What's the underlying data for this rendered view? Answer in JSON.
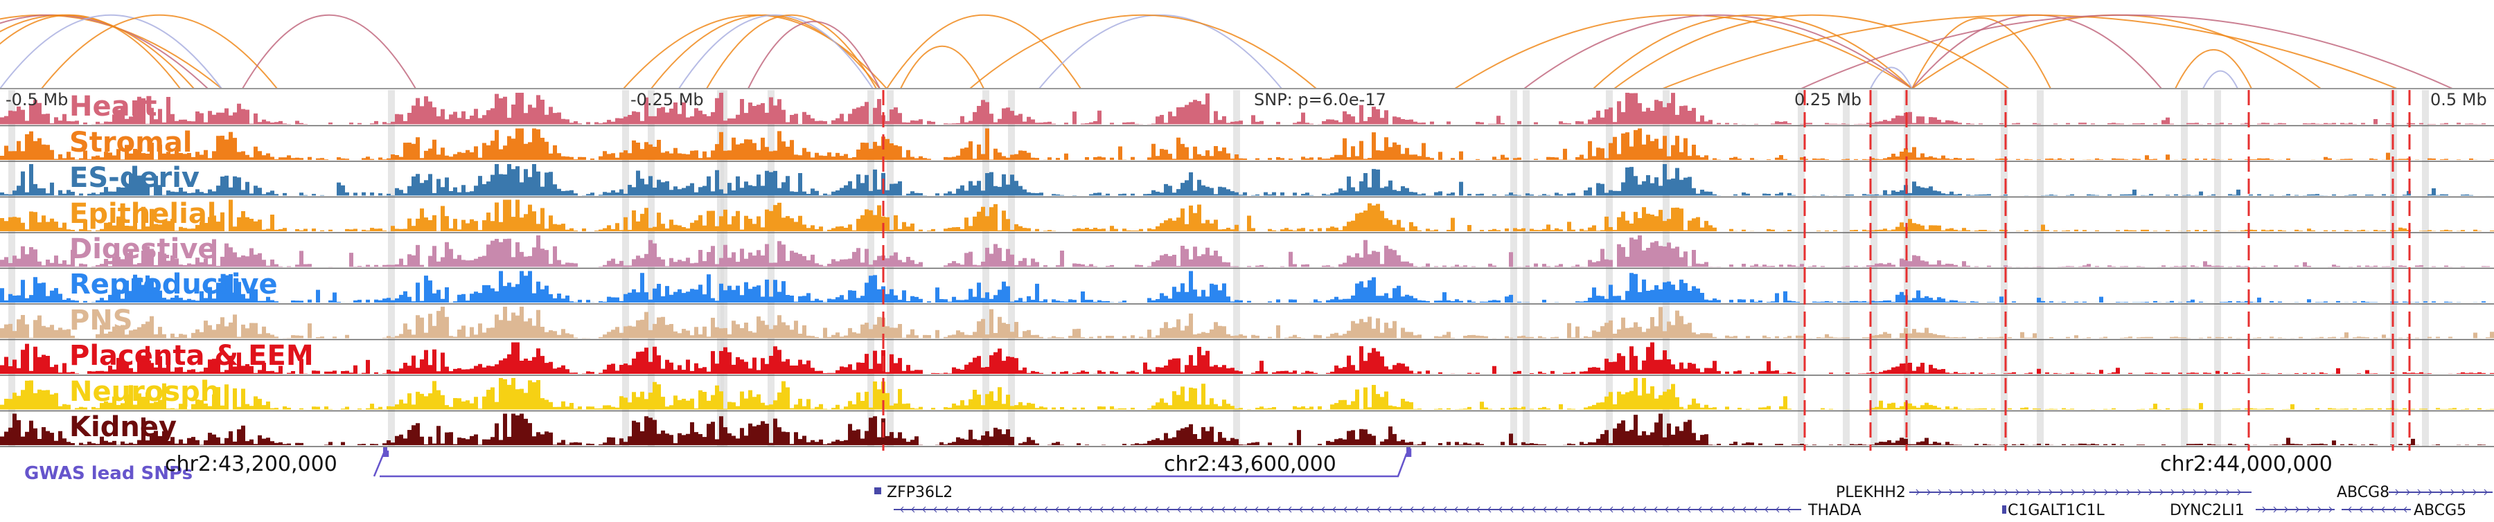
{
  "ruler": {
    "labels": [
      "-0.5 Mb",
      "-0.25 Mb",
      "SNP: p=6.0e-17",
      "0.25 Mb",
      "0.5 Mb"
    ]
  },
  "tracks": [
    {
      "label": "Heart",
      "color": "#d4667a"
    },
    {
      "label": "Stromal",
      "color": "#f07f1a"
    },
    {
      "label": "ES-deriv",
      "color": "#3a78ad"
    },
    {
      "label": "Epithelial",
      "color": "#f39a1d"
    },
    {
      "label": "Digestive",
      "color": "#c889ad"
    },
    {
      "label": "Reproductive",
      "color": "#2b86f0"
    },
    {
      "label": "PNS",
      "color": "#ddb894"
    },
    {
      "label": "Placenta & EEM",
      "color": "#e0121b"
    },
    {
      "label": "Neurosph",
      "color": "#f6d114"
    },
    {
      "label": "Kidney",
      "color": "#6b0c0c"
    }
  ],
  "gwas": {
    "label": "GWAS lead SNPs",
    "color": "#6655cc"
  },
  "coordinates": [
    "chr2:43,200,000",
    "chr2:43,600,000",
    "chr2:44,000,000"
  ],
  "genes": [
    "ZFP36L2",
    "PLEKHH2",
    "THADA",
    "C1GALT1C1L",
    "DYNC2LI1",
    "ABCG8",
    "ABCG5"
  ],
  "colors": {
    "arc_orange": "#f08a1c",
    "arc_mauve": "#c26a80",
    "arc_lavender": "#aab0e0",
    "highlight_line": "#e63030",
    "gene_color": "#4848a8",
    "column_shade": "#dddddd"
  }
}
